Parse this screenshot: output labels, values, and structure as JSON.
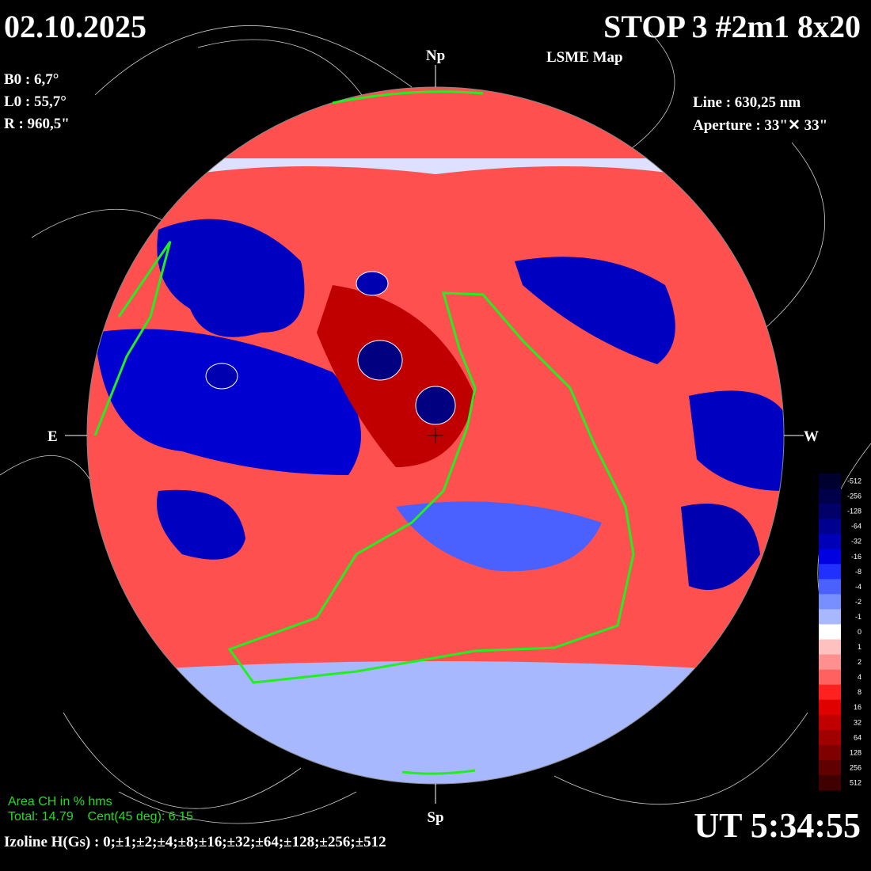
{
  "header": {
    "date": "02.10.2025",
    "title": "STOP 3 #2m1 8x20",
    "subtitle": "LSME  Map",
    "time": "UT 5:34:55"
  },
  "parameters": {
    "b0": "B0 : 6,7°",
    "l0": "L0 : 55,7°",
    "radius": "R  : 960,5\"",
    "line": "Line :  630,25 nm",
    "aperture": "Aperture : 33\"✕ 33\""
  },
  "disk": {
    "north": "Np",
    "south": "Sp",
    "east": "E",
    "west": "W"
  },
  "coronal_hole": {
    "heading": "Area CH in % hms",
    "totals": "Total: 14.79    Cent(45 deg): 6.15"
  },
  "isolines": "Izoline H(Gs) : 0;±1;±2;±4;±8;±16;±32;±64;±128;±256;±512",
  "colorbar": {
    "labels": [
      "-512",
      "-256",
      "-128",
      "-64",
      "-32",
      "-16",
      "-8",
      "-4",
      "-2",
      "-1",
      "0",
      "1",
      "2",
      "4",
      "8",
      "16",
      "32",
      "64",
      "128",
      "256",
      "512"
    ],
    "colors": [
      "#000030",
      "#00004a",
      "#000068",
      "#000090",
      "#0000b8",
      "#0000e0",
      "#2030ff",
      "#4a60ff",
      "#7890ff",
      "#a8b8ff",
      "#ffffff",
      "#ffc0c0",
      "#ff9090",
      "#ff6060",
      "#ff2020",
      "#e00000",
      "#c00000",
      "#a00000",
      "#800000",
      "#600000",
      "#400000"
    ]
  }
}
